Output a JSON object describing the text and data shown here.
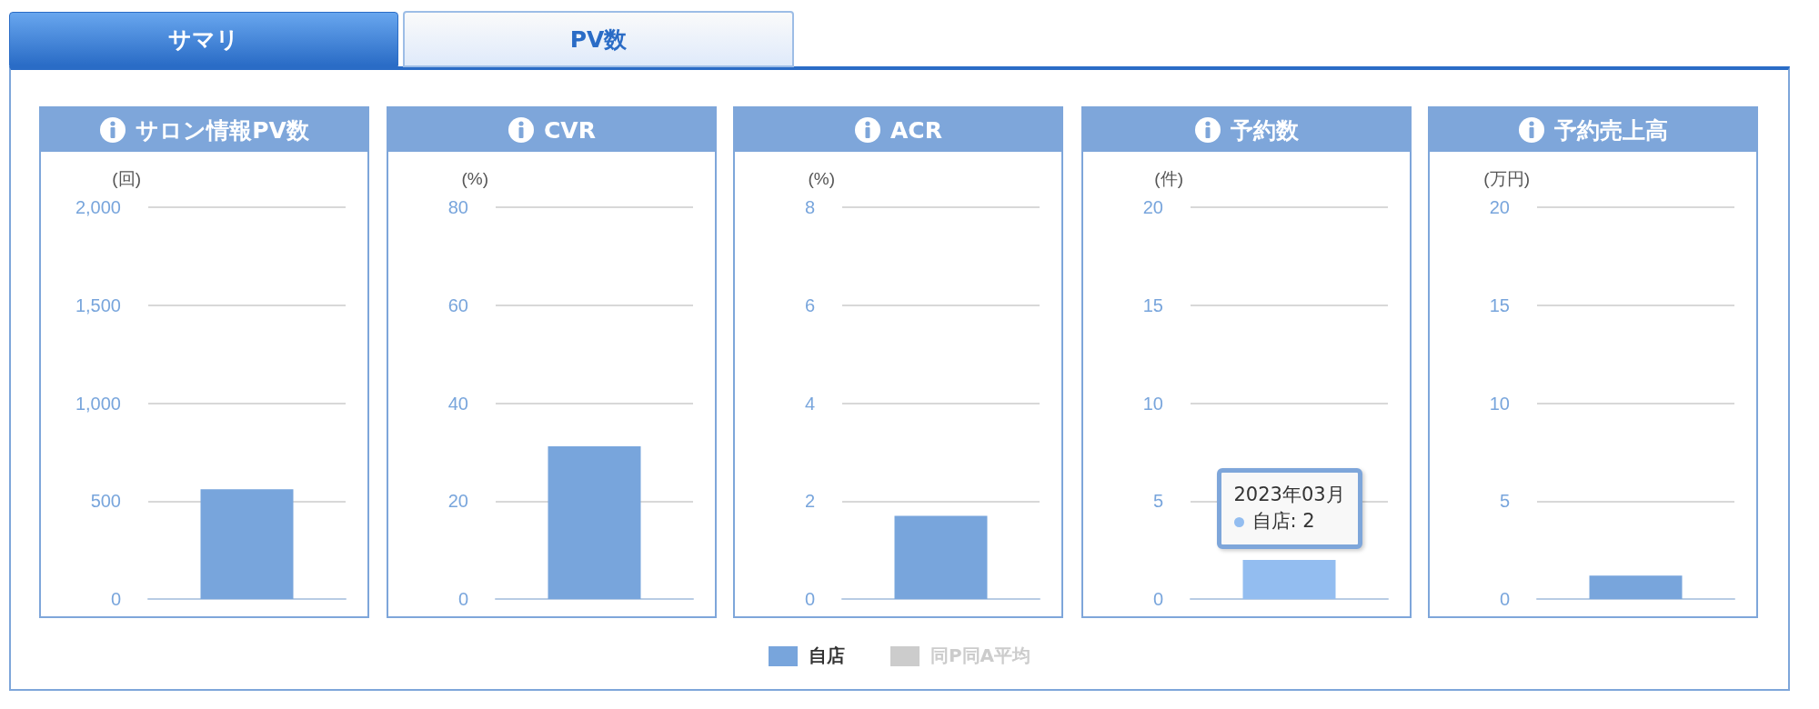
{
  "chart_data": [
    {
      "type": "other",
      "annotations": [
        "サマリ",
        "PV数"
      ]
    },
    {
      "type": "bar",
      "title": "サロン情報PV数",
      "ylabel": "(回)",
      "categories": [
        null
      ],
      "series": [
        {
          "name": "自店",
          "color": "#78a5dc",
          "values": [
            560
          ]
        },
        {
          "name": "同P同A平均",
          "color": "#cccccc",
          "values": [
            null
          ]
        }
      ],
      "ylim": [
        0,
        2000
      ],
      "yticks": [
        {
          "value": 0,
          "label": "0"
        },
        {
          "value": 500,
          "label": "500"
        },
        {
          "value": 1000,
          "label": "1,000"
        },
        {
          "value": 1500,
          "label": "1,500"
        },
        {
          "value": 2000,
          "label": "2,000"
        }
      ],
      "grid": "y",
      "tick_labels": "y",
      "legend": "bottom"
    },
    {
      "type": "bar",
      "title": "CVR",
      "ylabel": "(%)",
      "categories": [
        null
      ],
      "values": [
        31.2
      ],
      "color": "#78a5dc",
      "ylim": [
        0,
        80
      ],
      "yticks": [
        0,
        20,
        40,
        60,
        80
      ],
      "grid": "y",
      "tick_labels": "y"
    },
    {
      "type": "bar",
      "title": "ACR",
      "ylabel": "(%)",
      "categories": [
        null
      ],
      "values": [
        1.7
      ],
      "color": "#78a5dc",
      "ylim": [
        0,
        8
      ],
      "yticks": [
        0,
        2,
        4,
        6,
        8
      ],
      "grid": "y",
      "tick_labels": "y"
    },
    {
      "type": "bar",
      "title": "予約数",
      "ylabel": "(件)",
      "categories": [
        null
      ],
      "values": [
        2
      ],
      "color": "#93bdf0",
      "ylim": [
        0,
        20
      ],
      "yticks": [
        0,
        5,
        10,
        15,
        20
      ],
      "grid": "y",
      "tick_labels": "y",
      "annotations": [
        "2023年03月",
        "自店: 2"
      ]
    },
    {
      "type": "bar",
      "title": "予約売上高",
      "ylabel": "(万円)",
      "categories": [
        null
      ],
      "values": [
        1.2
      ],
      "color": "#78a5dc",
      "ylim": [
        0,
        20
      ],
      "yticks": [
        0,
        5,
        10,
        15,
        20
      ],
      "grid": "y",
      "tick_labels": "y"
    }
  ]
}
